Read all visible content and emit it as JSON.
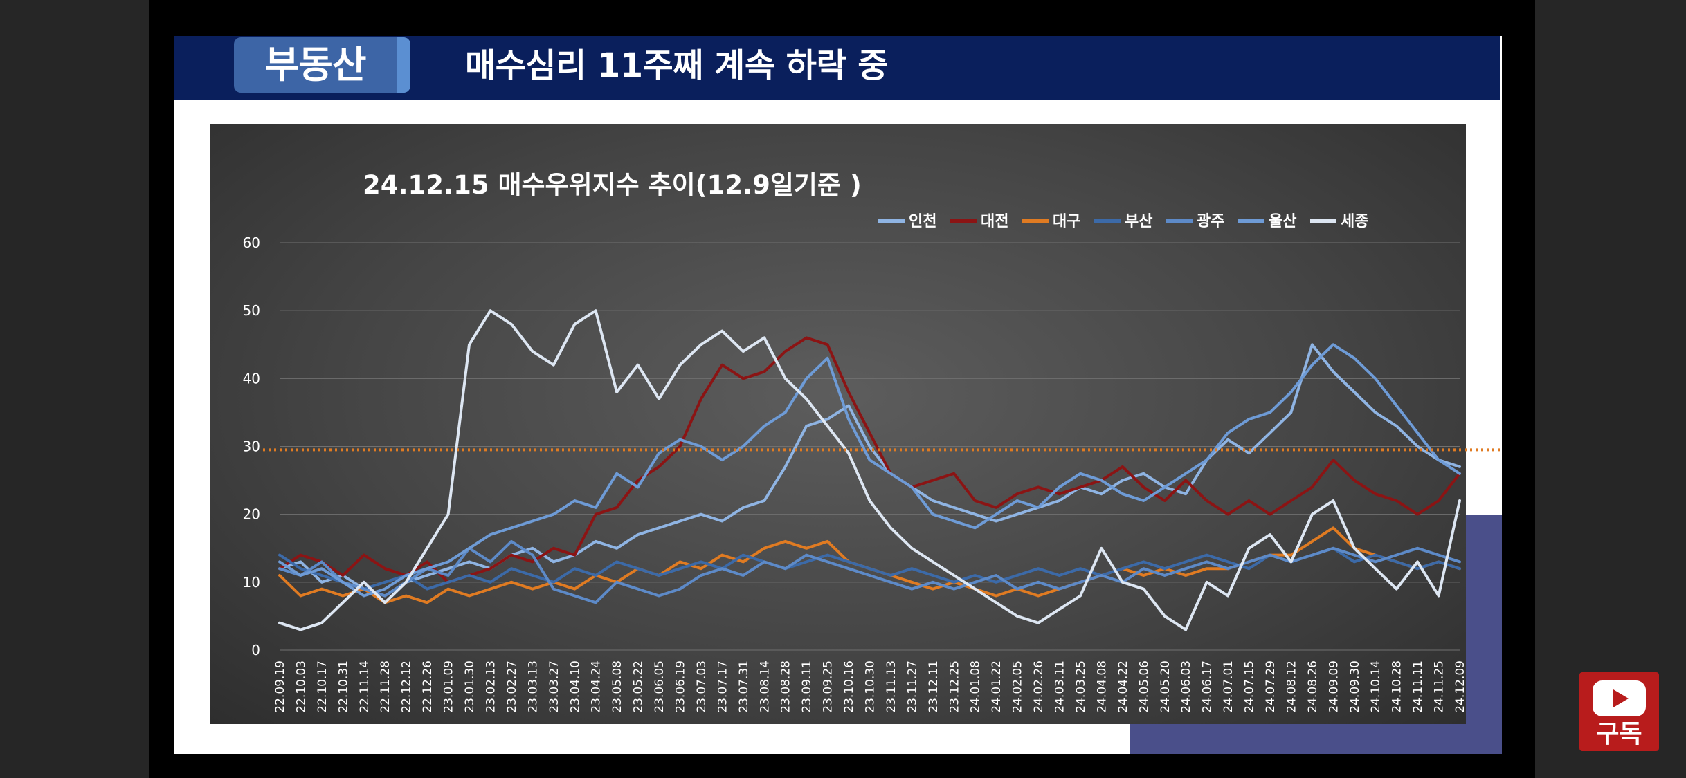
{
  "header": {
    "tag": "부동산",
    "headline": "매수심리 11주째 계속 하락 중"
  },
  "subscribe": {
    "label": "구독",
    "icon": "play-icon"
  },
  "chart_data": {
    "type": "line",
    "title": "24.12.15 매수우위지수 추이(12.9일기준 )",
    "xlabel": "",
    "ylabel": "",
    "ylim": [
      0,
      60
    ],
    "yticks": [
      0,
      10,
      20,
      30,
      40,
      50,
      60
    ],
    "grid": true,
    "legend_position": "top-right",
    "reference_line": {
      "y": 29.5,
      "color": "#e07b22",
      "style": "dotted"
    },
    "x_tick_labels": [
      "22.09.19",
      "22.10.03",
      "22.10.17",
      "22.10.31",
      "22.11.14",
      "22.11.28",
      "22.12.12",
      "22.12.26",
      "23.01.09",
      "23.01.30",
      "23.02.13",
      "23.02.27",
      "23.03.13",
      "23.03.27",
      "23.04.10",
      "23.04.24",
      "23.05.08",
      "23.05.22",
      "23.06.05",
      "23.06.19",
      "23.07.03",
      "23.07.17",
      "23.07.31",
      "23.08.14",
      "23.08.28",
      "23.09.11",
      "23.09.25",
      "23.10.16",
      "23.10.30",
      "23.11.13",
      "23.11.27",
      "23.12.11",
      "23.12.25",
      "24.01.08",
      "24.01.22",
      "24.02.05",
      "24.02.26",
      "24.03.11",
      "24.03.25",
      "24.04.08",
      "24.04.22",
      "24.05.06",
      "24.05.20",
      "24.06.03",
      "24.06.17",
      "24.07.01",
      "24.07.15",
      "24.07.29",
      "24.08.12",
      "24.08.26",
      "24.09.09",
      "24.09.30",
      "24.10.14",
      "24.10.28",
      "24.11.11",
      "24.11.25",
      "24.12.09"
    ],
    "series": [
      {
        "name": "인천",
        "color": "#8fb4e3",
        "values": [
          12,
          13,
          10,
          11,
          9,
          8,
          10,
          11,
          12,
          13,
          12,
          14,
          15,
          13,
          14,
          16,
          15,
          17,
          18,
          19,
          20,
          19,
          21,
          22,
          27,
          33,
          34,
          36,
          30,
          26,
          24,
          22,
          21,
          20,
          19,
          20,
          21,
          22,
          24,
          23,
          25,
          26,
          24,
          23,
          28,
          31,
          29,
          32,
          35,
          45,
          41,
          38,
          35,
          33,
          30,
          28,
          27
        ]
      },
      {
        "name": "대전",
        "color": "#8b1414",
        "values": [
          12,
          14,
          13,
          11,
          14,
          12,
          11,
          13,
          10,
          11,
          12,
          14,
          13,
          15,
          14,
          20,
          21,
          25,
          27,
          30,
          37,
          42,
          40,
          41,
          44,
          46,
          45,
          38,
          32,
          26,
          24,
          25,
          26,
          22,
          21,
          23,
          24,
          23,
          24,
          25,
          27,
          24,
          22,
          25,
          22,
          20,
          22,
          20,
          22,
          24,
          28,
          25,
          23,
          22,
          20,
          22,
          26
        ]
      },
      {
        "name": "대구",
        "color": "#e07b22",
        "values": [
          11,
          8,
          9,
          8,
          9,
          7,
          8,
          7,
          9,
          8,
          9,
          10,
          9,
          10,
          9,
          11,
          10,
          12,
          11,
          13,
          12,
          14,
          13,
          15,
          16,
          15,
          16,
          13,
          12,
          11,
          10,
          9,
          10,
          9,
          8,
          9,
          8,
          9,
          10,
          11,
          12,
          11,
          12,
          11,
          12,
          12,
          13,
          14,
          14,
          16,
          18,
          15,
          14,
          13,
          12,
          13,
          12
        ]
      },
      {
        "name": "부산",
        "color": "#3c6aa8",
        "values": [
          14,
          12,
          11,
          10,
          9,
          10,
          11,
          9,
          10,
          11,
          10,
          12,
          11,
          10,
          12,
          11,
          13,
          12,
          11,
          12,
          13,
          12,
          14,
          13,
          12,
          13,
          14,
          13,
          12,
          11,
          12,
          11,
          10,
          11,
          10,
          11,
          12,
          11,
          12,
          11,
          12,
          13,
          12,
          13,
          14,
          13,
          12,
          14,
          13,
          14,
          15,
          13,
          14,
          13,
          12,
          13,
          12
        ]
      },
      {
        "name": "광주",
        "color": "#5d8ac8",
        "values": [
          12,
          11,
          13,
          10,
          9,
          8,
          10,
          12,
          11,
          15,
          13,
          16,
          14,
          9,
          8,
          7,
          10,
          9,
          8,
          9,
          11,
          12,
          11,
          13,
          12,
          14,
          13,
          12,
          11,
          10,
          9,
          10,
          9,
          10,
          11,
          9,
          10,
          9,
          10,
          11,
          10,
          12,
          11,
          12,
          13,
          12,
          13,
          14,
          13,
          14,
          15,
          14,
          13,
          14,
          15,
          14,
          13
        ]
      },
      {
        "name": "울산",
        "color": "#6e9bd6",
        "values": [
          13,
          11,
          12,
          10,
          8,
          9,
          11,
          12,
          13,
          15,
          17,
          18,
          19,
          20,
          22,
          21,
          26,
          24,
          29,
          31,
          30,
          28,
          30,
          33,
          35,
          40,
          43,
          34,
          28,
          26,
          24,
          20,
          19,
          18,
          20,
          22,
          21,
          24,
          26,
          25,
          23,
          22,
          24,
          26,
          28,
          32,
          34,
          35,
          38,
          42,
          45,
          43,
          40,
          36,
          32,
          28,
          26
        ]
      },
      {
        "name": "세종",
        "color": "#dde6f2",
        "values": [
          4,
          3,
          4,
          7,
          10,
          7,
          10,
          15,
          20,
          45,
          50,
          48,
          44,
          42,
          48,
          50,
          38,
          42,
          37,
          42,
          45,
          47,
          44,
          46,
          40,
          37,
          33,
          29,
          22,
          18,
          15,
          13,
          11,
          9,
          7,
          5,
          4,
          6,
          8,
          15,
          10,
          9,
          5,
          3,
          10,
          8,
          15,
          17,
          13,
          20,
          22,
          15,
          12,
          9,
          13,
          8,
          22
        ]
      }
    ]
  }
}
